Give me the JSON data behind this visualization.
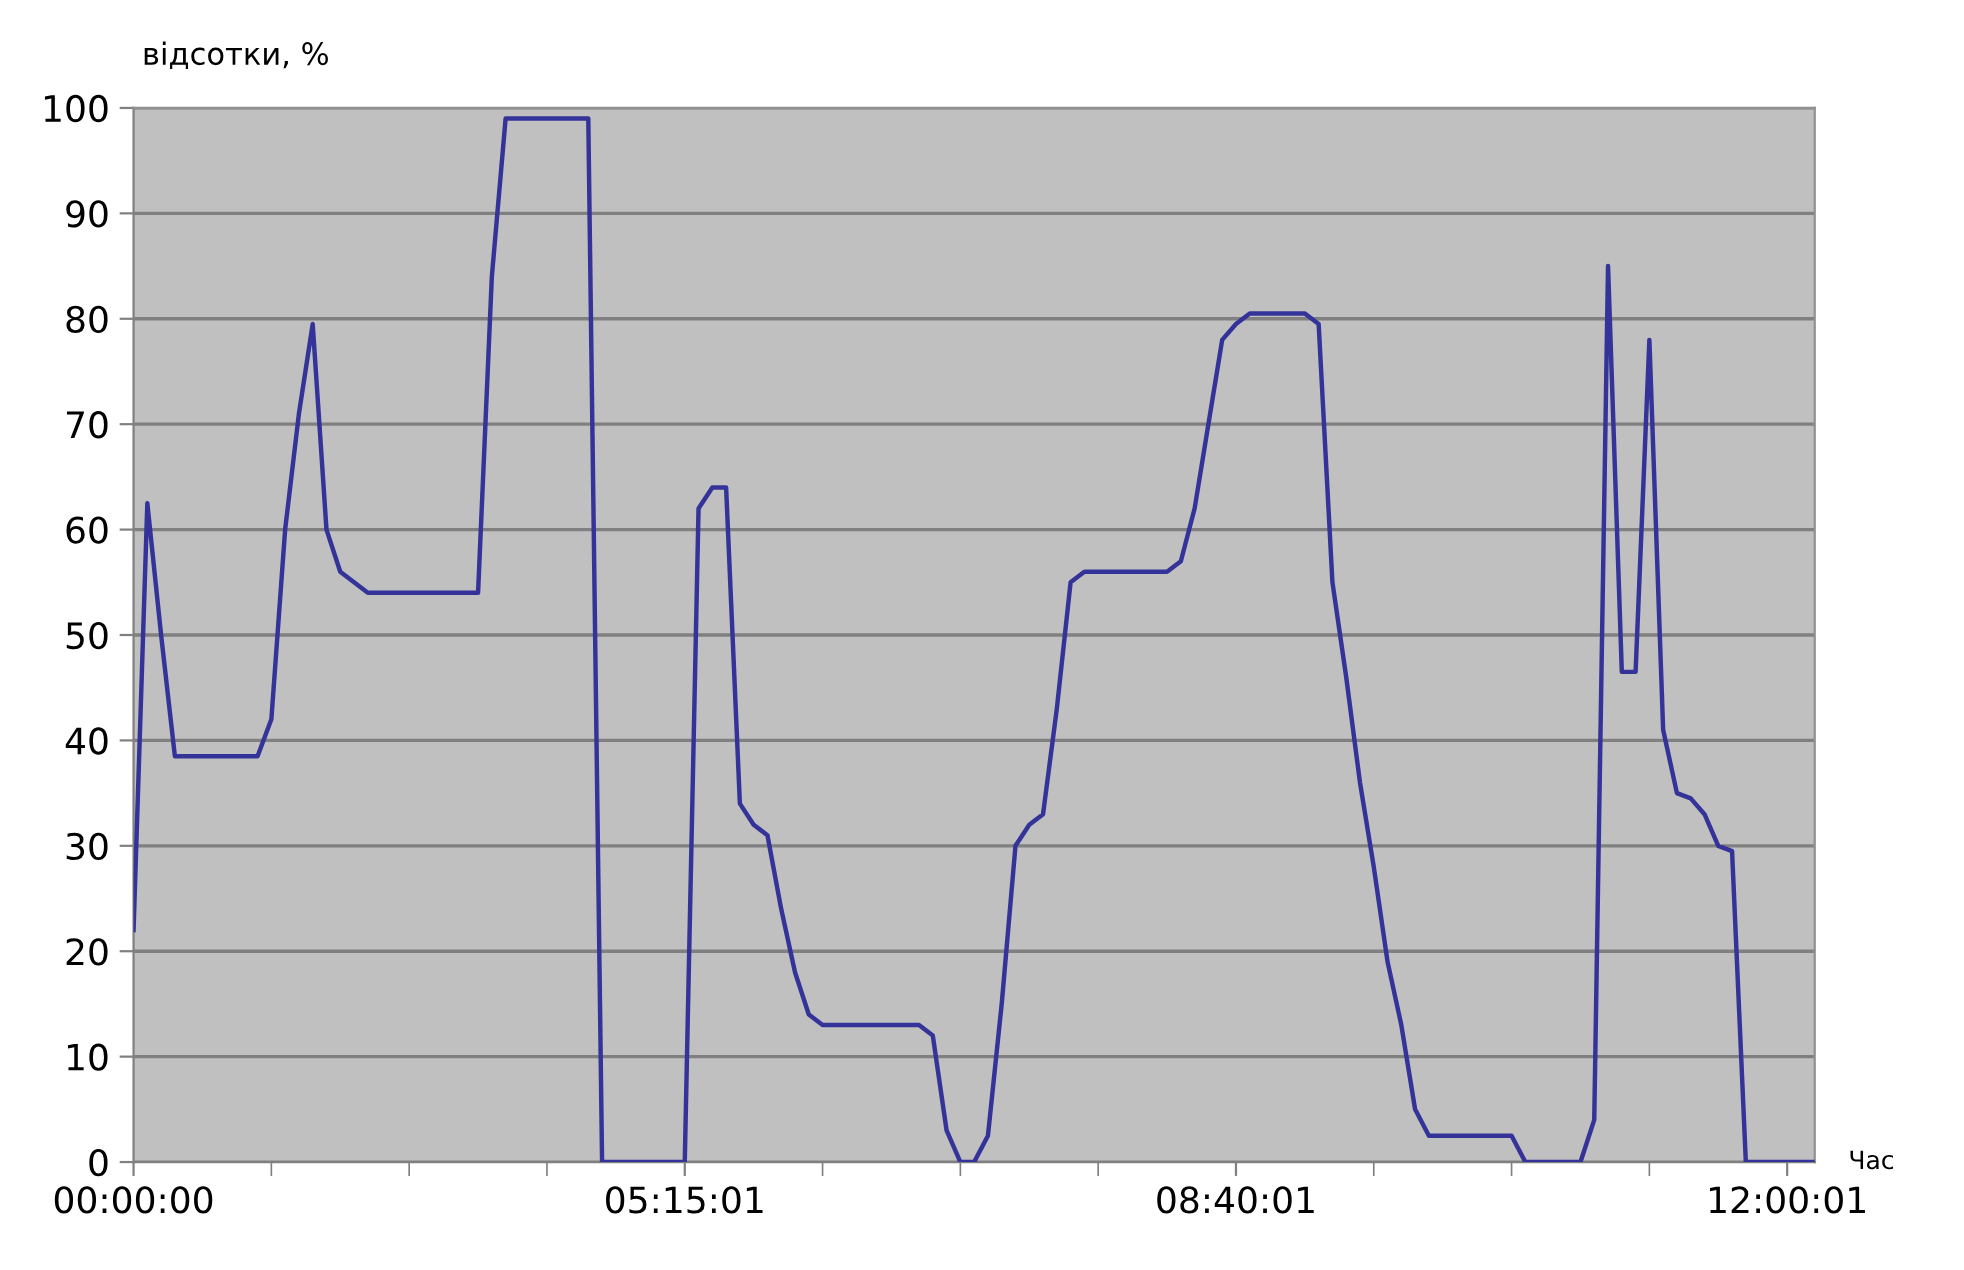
{
  "chart_data": {
    "type": "line",
    "xlabel": "Час",
    "ylabel": "відсотки, %",
    "categories": [
      "00:00:00",
      null,
      null,
      null,
      null,
      null,
      null,
      null,
      null,
      null,
      null,
      null,
      null,
      null,
      null,
      null,
      null,
      null,
      null,
      null,
      null,
      null,
      null,
      null,
      null,
      null,
      null,
      null,
      null,
      null,
      null,
      null,
      null,
      null,
      null,
      null,
      null,
      null,
      null,
      null,
      "05:15:01",
      null,
      null,
      null,
      null,
      null,
      null,
      null,
      null,
      null,
      null,
      null,
      null,
      null,
      null,
      null,
      null,
      null,
      null,
      null,
      null,
      null,
      null,
      null,
      null,
      null,
      null,
      null,
      null,
      null,
      null,
      null,
      null,
      null,
      null,
      null,
      null,
      null,
      null,
      null,
      "08:40:01",
      null,
      null,
      null,
      null,
      null,
      null,
      null,
      null,
      null,
      null,
      null,
      null,
      null,
      null,
      null,
      null,
      null,
      null,
      null,
      null,
      null,
      null,
      null,
      null,
      null,
      null,
      null,
      null,
      null,
      null,
      null,
      null,
      null,
      null,
      null,
      null,
      null,
      null,
      null,
      "12:00:01",
      null,
      null
    ],
    "series": [
      {
        "color": "#333399",
        "values": [
          22,
          62.5,
          50,
          38.5,
          38.5,
          38.5,
          38.5,
          38.5,
          38.5,
          38.5,
          42,
          60,
          71,
          79.5,
          60,
          56,
          55,
          54,
          54,
          54,
          54,
          54,
          54,
          54,
          54,
          54,
          84,
          99,
          99,
          99,
          99,
          99,
          99,
          99,
          0,
          0,
          0,
          0,
          0,
          0,
          0,
          62,
          64,
          64,
          34,
          32,
          31,
          24,
          18,
          14,
          13,
          13,
          13,
          13,
          13,
          13,
          13,
          13,
          12,
          3,
          0,
          0,
          2.5,
          15,
          30,
          32,
          33,
          43,
          55,
          56,
          56,
          56,
          56,
          56,
          56,
          56,
          57,
          62,
          70,
          78,
          79.5,
          80.5,
          80.5,
          80.5,
          80.5,
          80.5,
          79.5,
          55,
          46,
          36,
          28,
          19,
          13,
          5,
          2.5,
          2.5,
          2.5,
          2.5,
          2.5,
          2.5,
          2.5,
          0,
          0,
          0,
          0,
          0,
          4,
          85,
          46.5,
          46.5,
          78,
          41,
          35,
          34.5,
          33,
          30,
          29.5,
          0,
          0,
          0,
          0,
          0,
          0
        ]
      }
    ],
    "ylim": [
      0,
      100
    ],
    "yticks": [
      0,
      10,
      20,
      30,
      40,
      50,
      60,
      70,
      80,
      90,
      100
    ],
    "grid": "y",
    "legend": false,
    "marker": "none",
    "line_style": "solid"
  }
}
